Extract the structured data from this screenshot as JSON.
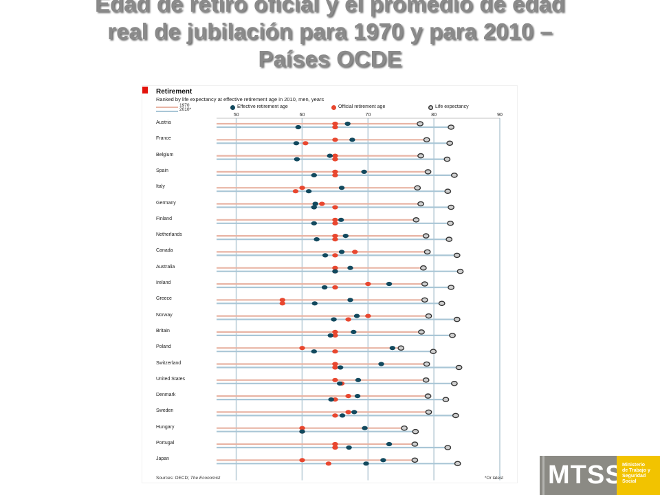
{
  "slide": {
    "title_lines": [
      "Edad de retiro oficial y el promedio de edad",
      "real de jubilación para 1970 y para 2010 –",
      "Países OCDE"
    ]
  },
  "figure": {
    "heading": "Retirement",
    "subheading": "Ranked by life expectancy at effective retirement age in 2010, men, years",
    "legend": {
      "year_1970": "1970",
      "year_2010": "2010*",
      "effective": "Effective retirement age",
      "official": "Official retirement age",
      "life": "Life expectancy"
    },
    "source_prefix": "Sources: OECD;",
    "source_italic": "The Economist",
    "footnote": "*Or latest"
  },
  "logo": {
    "word": "MTSS",
    "side_text": [
      "Ministerio",
      "de Trabajo y",
      "Seguridad",
      "Social"
    ]
  },
  "colors": {
    "line_1970": "#e8b4a4",
    "line_2010": "#a9c6d6",
    "effective": "#12495e",
    "official": "#e8472f",
    "life_fill": "#cfcfcf",
    "life_stroke": "#333333",
    "grid": "#c9d8e0"
  },
  "chart_data": {
    "type": "scatter",
    "title": "Retirement",
    "subtitle": "Ranked by life expectancy at effective retirement age in 2010, men, years",
    "x_ticks": [
      50,
      60,
      70,
      80,
      90
    ],
    "xlim": [
      47,
      90
    ],
    "grid": true,
    "legend_position": "top",
    "series_names": [
      "Effective retirement age",
      "Official retirement age",
      "Life expectancy"
    ],
    "countries": [
      {
        "name": "Austria",
        "y1970": {
          "effective": 66.9,
          "official": 65,
          "life": 77.9
        },
        "y2010": {
          "effective": 59.4,
          "official": 65,
          "life": 82.6
        }
      },
      {
        "name": "France",
        "y1970": {
          "effective": 67.6,
          "official": 65,
          "life": 78.9
        },
        "y2010": {
          "effective": 59.1,
          "official": 60.5,
          "life": 82.4
        }
      },
      {
        "name": "Belgium",
        "y1970": {
          "effective": 64.2,
          "official": 65,
          "life": 78
        },
        "y2010": {
          "effective": 59.2,
          "official": 65,
          "life": 82
        }
      },
      {
        "name": "Spain",
        "y1970": {
          "effective": 69.4,
          "official": 65,
          "life": 79.1
        },
        "y2010": {
          "effective": 61.8,
          "official": 65,
          "life": 83.1
        }
      },
      {
        "name": "Italy",
        "y1970": {
          "effective": 66,
          "official": 60,
          "life": 77.5
        },
        "y2010": {
          "effective": 61,
          "official": 59,
          "life": 82.1
        }
      },
      {
        "name": "Germany",
        "y1970": {
          "effective": 62,
          "official": 63,
          "life": 78
        },
        "y2010": {
          "effective": 61.8,
          "official": 65,
          "life": 82.6
        }
      },
      {
        "name": "Finland",
        "y1970": {
          "effective": 65.9,
          "official": 65,
          "life": 77.3
        },
        "y2010": {
          "effective": 61.8,
          "official": 65,
          "life": 82.5
        }
      },
      {
        "name": "Netherlands",
        "y1970": {
          "effective": 66.6,
          "official": 65,
          "life": 78.8
        },
        "y2010": {
          "effective": 62.2,
          "official": 65,
          "life": 82.3
        }
      },
      {
        "name": "Canada",
        "y1970": {
          "effective": 66,
          "official": 68,
          "life": 79
        },
        "y2010": {
          "effective": 63.5,
          "official": 65,
          "life": 83.5
        }
      },
      {
        "name": "Australia",
        "y1970": {
          "effective": 67.3,
          "official": 65,
          "life": 78.4
        },
        "y2010": {
          "effective": 65,
          "official": 65,
          "life": 84
        }
      },
      {
        "name": "Ireland",
        "y1970": {
          "effective": 73.2,
          "official": 70,
          "life": 78.6
        },
        "y2010": {
          "effective": 63.4,
          "official": 65,
          "life": 82.6
        }
      },
      {
        "name": "Greece",
        "y1970": {
          "effective": 67.3,
          "official": 57,
          "life": 78.6
        },
        "y2010": {
          "effective": 61.9,
          "official": 57,
          "life": 81.2
        }
      },
      {
        "name": "Norway",
        "y1970": {
          "effective": 68.3,
          "official": 70,
          "life": 79.2
        },
        "y2010": {
          "effective": 64.8,
          "official": 67,
          "life": 83.5
        }
      },
      {
        "name": "Britain",
        "y1970": {
          "effective": 67.8,
          "official": 65,
          "life": 78.1
        },
        "y2010": {
          "effective": 64.3,
          "official": 65,
          "life": 82.8
        }
      },
      {
        "name": "Poland",
        "y1970": {
          "effective": 73.7,
          "official": 60,
          "life": 75
        },
        "y2010": {
          "effective": 61.8,
          "official": 65,
          "life": 79.9
        }
      },
      {
        "name": "Switzerland",
        "y1970": {
          "effective": 72,
          "official": 65,
          "life": 78.9
        },
        "y2010": {
          "effective": 65.8,
          "official": 65,
          "life": 83.8
        }
      },
      {
        "name": "United States",
        "y1970": {
          "effective": 68.5,
          "official": 65,
          "life": 78.8
        },
        "y2010": {
          "effective": 65.7,
          "official": 66,
          "life": 83.1
        }
      },
      {
        "name": "Denmark",
        "y1970": {
          "effective": 68.4,
          "official": 67,
          "life": 79.1
        },
        "y2010": {
          "effective": 64.4,
          "official": 65,
          "life": 81.8
        }
      },
      {
        "name": "Sweden",
        "y1970": {
          "effective": 67.9,
          "official": 67,
          "life": 79.2
        },
        "y2010": {
          "effective": 66.1,
          "official": 65,
          "life": 83.3
        }
      },
      {
        "name": "Hungary",
        "y1970": {
          "effective": 69.5,
          "official": 60,
          "life": 75.5
        },
        "y2010": {
          "effective": 60,
          "official": 60,
          "life": 77.2
        }
      },
      {
        "name": "Portugal",
        "y1970": {
          "effective": 73.2,
          "official": 65,
          "life": 77.1
        },
        "y2010": {
          "effective": 67.1,
          "official": 65,
          "life": 82.1
        }
      },
      {
        "name": "Japan",
        "y1970": {
          "effective": 72.3,
          "official": 60,
          "life": 77.1
        },
        "y2010": {
          "effective": 69.7,
          "official": 64,
          "life": 83.6
        }
      }
    ]
  }
}
